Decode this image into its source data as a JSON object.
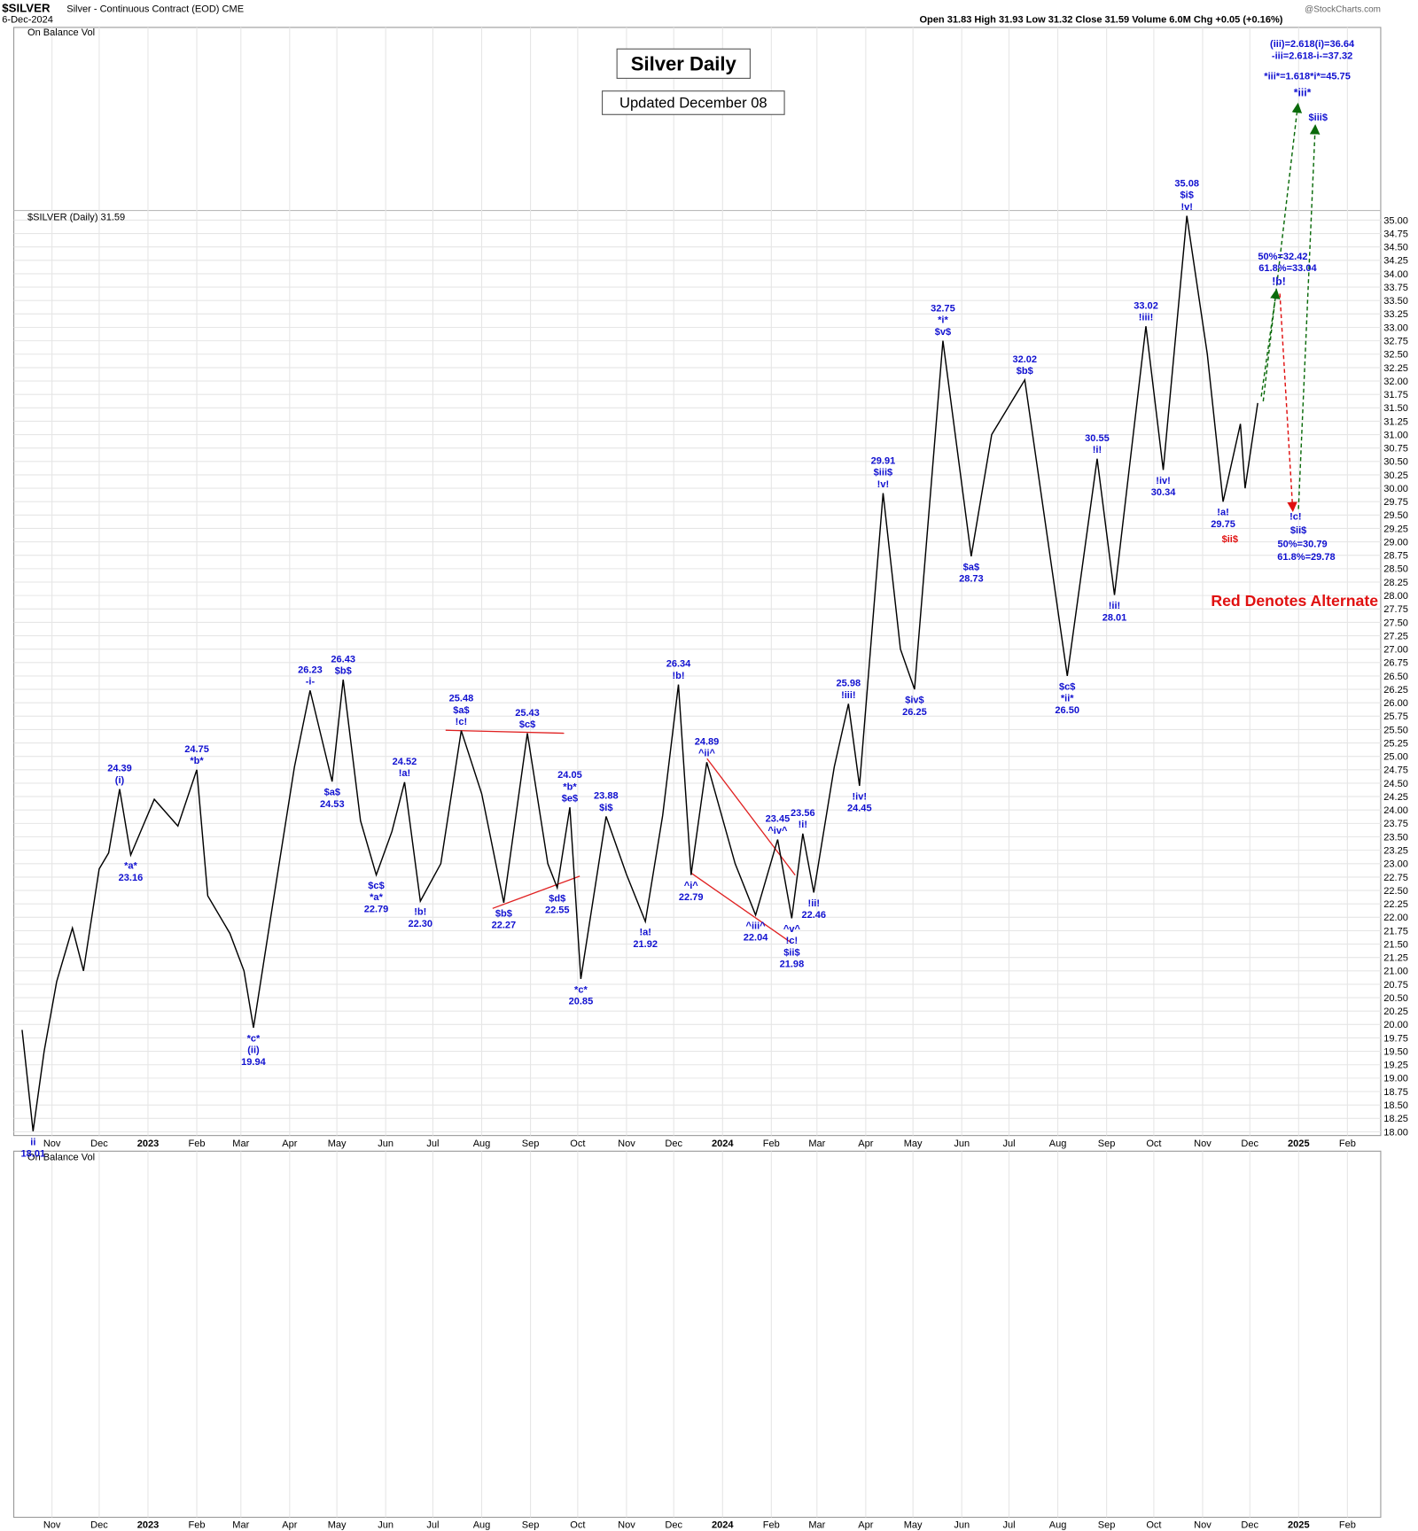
{
  "header": {
    "symbol": "$SILVER",
    "description": "Silver - Continuous Contract (EOD) CME",
    "date": "6-Dec-2024",
    "quote": "Open 31.83  High 31.93  Low 31.32  Close 31.59  Volume 6.0M  Chg +0.05 (+0.16%)",
    "brand": "@StockCharts.com",
    "upper_panel": "On Balance Vol",
    "price_panel": "$SILVER (Daily) 31.59",
    "lower_panel": "On Balance Vol"
  },
  "chart_data": {
    "type": "line",
    "title": "Silver Daily",
    "subtitle": "Updated December 08",
    "color": "#000000",
    "grid": true,
    "ylim": [
      17.93,
      35.18
    ],
    "yticks": [
      {
        "value": 18,
        "label": "18.00"
      },
      {
        "value": 18.25,
        "label": "18.25"
      },
      {
        "value": 18.5,
        "label": "18.50"
      },
      {
        "value": 18.75,
        "label": "18.75"
      },
      {
        "value": 19,
        "label": "19.00"
      },
      {
        "value": 19.25,
        "label": "19.25"
      },
      {
        "value": 19.5,
        "label": "19.50"
      },
      {
        "value": 19.75,
        "label": "19.75"
      },
      {
        "value": 20,
        "label": "20.00"
      },
      {
        "value": 20.25,
        "label": "20.25"
      },
      {
        "value": 20.5,
        "label": "20.50"
      },
      {
        "value": 20.75,
        "label": "20.75"
      },
      {
        "value": 21,
        "label": "21.00"
      },
      {
        "value": 21.25,
        "label": "21.25"
      },
      {
        "value": 21.5,
        "label": "21.50"
      },
      {
        "value": 21.75,
        "label": "21.75"
      },
      {
        "value": 22,
        "label": "22.00"
      },
      {
        "value": 22.25,
        "label": "22.25"
      },
      {
        "value": 22.5,
        "label": "22.50"
      },
      {
        "value": 22.75,
        "label": "22.75"
      },
      {
        "value": 23,
        "label": "23.00"
      },
      {
        "value": 23.25,
        "label": "23.25"
      },
      {
        "value": 23.5,
        "label": "23.50"
      },
      {
        "value": 23.75,
        "label": "23.75"
      },
      {
        "value": 24,
        "label": "24.00"
      },
      {
        "value": 24.25,
        "label": "24.25"
      },
      {
        "value": 24.5,
        "label": "24.50"
      },
      {
        "value": 24.75,
        "label": "24.75"
      },
      {
        "value": 25,
        "label": "25.00"
      },
      {
        "value": 25.25,
        "label": "25.25"
      },
      {
        "value": 25.5,
        "label": "25.50"
      },
      {
        "value": 25.75,
        "label": "25.75"
      },
      {
        "value": 26,
        "label": "26.00"
      },
      {
        "value": 26.25,
        "label": "26.25"
      },
      {
        "value": 26.5,
        "label": "26.50"
      },
      {
        "value": 26.75,
        "label": "26.75"
      },
      {
        "value": 27,
        "label": "27.00"
      },
      {
        "value": 27.25,
        "label": "27.25"
      },
      {
        "value": 27.5,
        "label": "27.50"
      },
      {
        "value": 27.75,
        "label": "27.75"
      },
      {
        "value": 28,
        "label": "28.00"
      },
      {
        "value": 28.25,
        "label": "28.25"
      },
      {
        "value": 28.5,
        "label": "28.50"
      },
      {
        "value": 28.75,
        "label": "28.75"
      },
      {
        "value": 29,
        "label": "29.00"
      },
      {
        "value": 29.25,
        "label": "29.25"
      },
      {
        "value": 29.5,
        "label": "29.50"
      },
      {
        "value": 29.75,
        "label": "29.75"
      },
      {
        "value": 30,
        "label": "30.00"
      },
      {
        "value": 30.25,
        "label": "30.25"
      },
      {
        "value": 30.5,
        "label": "30.50"
      },
      {
        "value": 30.75,
        "label": "30.75"
      },
      {
        "value": 31,
        "label": "31.00"
      },
      {
        "value": 31.25,
        "label": "31.25"
      },
      {
        "value": 31.5,
        "label": "31.50"
      },
      {
        "value": 31.75,
        "label": "31.75"
      },
      {
        "value": 32,
        "label": "32.00"
      },
      {
        "value": 32.25,
        "label": "32.25"
      },
      {
        "value": 32.5,
        "label": "32.50"
      },
      {
        "value": 32.75,
        "label": "32.75"
      },
      {
        "value": 33,
        "label": "33.00"
      },
      {
        "value": 33.25,
        "label": "33.25"
      },
      {
        "value": 33.5,
        "label": "33.50"
      },
      {
        "value": 33.75,
        "label": "33.75"
      },
      {
        "value": 34,
        "label": "34.00"
      },
      {
        "value": 34.25,
        "label": "34.25"
      },
      {
        "value": 34.5,
        "label": "34.50"
      },
      {
        "value": 34.75,
        "label": "34.75"
      },
      {
        "value": 35,
        "label": "35.00"
      }
    ],
    "xlim": [
      "2022-10-12",
      "2025-02-28"
    ],
    "xticks": [
      {
        "value": "2022-11-01",
        "label": "Nov"
      },
      {
        "value": "2022-12-01",
        "label": "Dec"
      },
      {
        "value": "2023-01-01",
        "label": "2023"
      },
      {
        "value": "2023-02-01",
        "label": "Feb"
      },
      {
        "value": "2023-03-01",
        "label": "Mar"
      },
      {
        "value": "2023-04-01",
        "label": "Apr"
      },
      {
        "value": "2023-05-01",
        "label": "May"
      },
      {
        "value": "2023-06-01",
        "label": "Jun"
      },
      {
        "value": "2023-07-01",
        "label": "Jul"
      },
      {
        "value": "2023-08-01",
        "label": "Aug"
      },
      {
        "value": "2023-09-01",
        "label": "Sep"
      },
      {
        "value": "2023-10-01",
        "label": "Oct"
      },
      {
        "value": "2023-11-01",
        "label": "Nov"
      },
      {
        "value": "2023-12-01",
        "label": "Dec"
      },
      {
        "value": "2024-01-01",
        "label": "2024"
      },
      {
        "value": "2024-02-01",
        "label": "Feb"
      },
      {
        "value": "2024-03-01",
        "label": "Mar"
      },
      {
        "value": "2024-04-01",
        "label": "Apr"
      },
      {
        "value": "2024-05-01",
        "label": "May"
      },
      {
        "value": "2024-06-01",
        "label": "Jun"
      },
      {
        "value": "2024-07-01",
        "label": "Jul"
      },
      {
        "value": "2024-08-01",
        "label": "Aug"
      },
      {
        "value": "2024-09-01",
        "label": "Sep"
      },
      {
        "value": "2024-10-01",
        "label": "Oct"
      },
      {
        "value": "2024-11-01",
        "label": "Nov"
      },
      {
        "value": "2024-12-01",
        "label": "Dec"
      },
      {
        "value": "2025-01-01",
        "label": "2025"
      },
      {
        "value": "2025-02-01",
        "label": "Feb"
      }
    ],
    "x": [
      "2022-10-13",
      "2022-10-20",
      "2022-10-27",
      "2022-11-04",
      "2022-11-14",
      "2022-11-21",
      "2022-12-01",
      "2022-12-07",
      "2022-12-14",
      "2022-12-21",
      "2023-01-05",
      "2023-01-20",
      "2023-02-01",
      "2023-02-08",
      "2023-02-22",
      "2023-03-03",
      "2023-03-09",
      "2023-03-20",
      "2023-04-04",
      "2023-04-14",
      "2023-04-28",
      "2023-05-05",
      "2023-05-16",
      "2023-05-26",
      "2023-06-05",
      "2023-06-13",
      "2023-06-23",
      "2023-07-06",
      "2023-07-19",
      "2023-08-01",
      "2023-08-15",
      "2023-08-30",
      "2023-09-12",
      "2023-09-18",
      "2023-09-26",
      "2023-10-03",
      "2023-10-19",
      "2023-11-01",
      "2023-11-13",
      "2023-11-24",
      "2023-12-04",
      "2023-12-12",
      "2023-12-22",
      "2024-01-09",
      "2024-01-22",
      "2024-02-05",
      "2024-02-14",
      "2024-02-21",
      "2024-02-28",
      "2024-03-12",
      "2024-03-21",
      "2024-03-28",
      "2024-04-12",
      "2024-04-23",
      "2024-05-02",
      "2024-05-20",
      "2024-06-07",
      "2024-06-20",
      "2024-07-11",
      "2024-08-07",
      "2024-08-26",
      "2024-09-06",
      "2024-09-26",
      "2024-10-07",
      "2024-10-22",
      "2024-11-04",
      "2024-11-14",
      "2024-11-25",
      "2024-11-28",
      "2024-12-06"
    ],
    "values": [
      19.9,
      18.01,
      19.5,
      20.8,
      21.8,
      21.0,
      22.9,
      23.2,
      24.39,
      23.16,
      24.2,
      23.7,
      24.75,
      22.4,
      21.7,
      21.0,
      19.94,
      22.0,
      24.8,
      26.23,
      24.53,
      26.43,
      23.8,
      22.79,
      23.6,
      24.52,
      22.3,
      23.0,
      25.48,
      24.3,
      22.27,
      25.43,
      23.0,
      22.55,
      24.05,
      20.85,
      23.88,
      22.8,
      21.92,
      23.9,
      26.34,
      22.79,
      24.89,
      23.0,
      22.04,
      23.45,
      21.98,
      23.56,
      22.46,
      24.8,
      25.98,
      24.45,
      29.91,
      27.0,
      26.25,
      32.75,
      28.73,
      31.0,
      32.02,
      26.5,
      30.55,
      28.01,
      33.02,
      30.34,
      35.08,
      32.5,
      29.75,
      31.2,
      30.0,
      31.59
    ],
    "annotations": [
      {
        "x": "2022-10-20",
        "value": 18.01,
        "value_label": "18.01",
        "labels": [
          "ii"
        ],
        "side": "below"
      },
      {
        "x": "2022-12-14",
        "value": 24.39,
        "value_label": "24.39",
        "labels": [
          "(i)"
        ],
        "side": "above"
      },
      {
        "x": "2022-12-21",
        "value": 23.16,
        "value_label": "23.16",
        "labels": [
          "*a*"
        ],
        "side": "below"
      },
      {
        "x": "2023-02-01",
        "value": 24.75,
        "value_label": "24.75",
        "labels": [
          "*b*"
        ],
        "side": "above"
      },
      {
        "x": "2023-03-09",
        "value": 19.94,
        "value_label": "19.94",
        "labels": [
          "*c*",
          "(ii)"
        ],
        "side": "below"
      },
      {
        "x": "2023-04-14",
        "value": 26.23,
        "value_label": "26.23",
        "labels": [
          "-i-"
        ],
        "side": "above"
      },
      {
        "x": "2023-04-28",
        "value": 24.53,
        "value_label": "24.53",
        "labels": [
          "$a$"
        ],
        "side": "below"
      },
      {
        "x": "2023-05-05",
        "value": 26.43,
        "value_label": "26.43",
        "labels": [
          "$b$"
        ],
        "side": "above"
      },
      {
        "x": "2023-05-26",
        "value": 22.79,
        "value_label": "22.79",
        "labels": [
          "$c$",
          "*a*"
        ],
        "side": "below"
      },
      {
        "x": "2023-06-13",
        "value": 24.52,
        "value_label": "24.52",
        "labels": [
          "!a!"
        ],
        "side": "above"
      },
      {
        "x": "2023-06-23",
        "value": 22.3,
        "value_label": "22.30",
        "labels": [
          "!b!"
        ],
        "side": "below"
      },
      {
        "x": "2023-07-19",
        "value": 25.48,
        "value_label": "25.48",
        "labels": [
          "$a$",
          "!c!"
        ],
        "side": "above"
      },
      {
        "x": "2023-08-15",
        "value": 22.27,
        "value_label": "22.27",
        "labels": [
          "$b$"
        ],
        "side": "below"
      },
      {
        "x": "2023-08-30",
        "value": 25.43,
        "value_label": "25.43",
        "labels": [
          "$c$"
        ],
        "side": "above"
      },
      {
        "x": "2023-09-18",
        "value": 22.55,
        "value_label": "22.55",
        "labels": [
          "$d$"
        ],
        "side": "below"
      },
      {
        "x": "2023-09-26",
        "value": 24.05,
        "value_label": "24.05",
        "labels": [
          "*b*",
          "$e$"
        ],
        "side": "above"
      },
      {
        "x": "2023-10-03",
        "value": 20.85,
        "value_label": "20.85",
        "labels": [
          "*c*"
        ],
        "side": "below"
      },
      {
        "x": "2023-10-19",
        "value": 23.88,
        "value_label": "23.88",
        "labels": [
          "$i$"
        ],
        "side": "above"
      },
      {
        "x": "2023-11-13",
        "value": 21.92,
        "value_label": "21.92",
        "labels": [
          "!a!"
        ],
        "side": "below"
      },
      {
        "x": "2023-12-04",
        "value": 26.34,
        "value_label": "26.34",
        "labels": [
          "!b!"
        ],
        "side": "above"
      },
      {
        "x": "2023-12-12",
        "value": 22.79,
        "value_label": "22.79",
        "labels": [
          "^i^"
        ],
        "side": "below"
      },
      {
        "x": "2023-12-22",
        "value": 24.89,
        "value_label": "24.89",
        "labels": [
          "^ii^"
        ],
        "side": "above"
      },
      {
        "x": "2024-01-22",
        "value": 22.04,
        "value_label": "22.04",
        "labels": [
          "^iii^"
        ],
        "side": "below"
      },
      {
        "x": "2024-02-05",
        "value": 23.45,
        "value_label": "23.45",
        "labels": [
          "^iv^"
        ],
        "side": "above"
      },
      {
        "x": "2024-02-14",
        "value": 21.98,
        "value_label": "21.98",
        "labels": [
          "^v^",
          "!c!",
          "$ii$"
        ],
        "side": "below"
      },
      {
        "x": "2024-02-21",
        "value": 23.56,
        "value_label": "23.56",
        "labels": [
          "!i!"
        ],
        "side": "above"
      },
      {
        "x": "2024-02-28",
        "value": 22.46,
        "value_label": "22.46",
        "labels": [
          "!ii!"
        ],
        "side": "below"
      },
      {
        "x": "2024-03-21",
        "value": 25.98,
        "value_label": "25.98",
        "labels": [
          "!iii!"
        ],
        "side": "above"
      },
      {
        "x": "2024-03-28",
        "value": 24.45,
        "value_label": "24.45",
        "labels": [
          "!iv!"
        ],
        "side": "below"
      },
      {
        "x": "2024-04-12",
        "value": 29.91,
        "value_label": "29.91",
        "labels": [
          "$iii$",
          "!v!"
        ],
        "side": "above"
      },
      {
        "x": "2024-05-02",
        "value": 26.25,
        "value_label": "26.25",
        "labels": [
          "$iv$"
        ],
        "side": "below"
      },
      {
        "x": "2024-05-20",
        "value": 32.75,
        "value_label": "32.75",
        "labels": [
          "*i*",
          "$v$"
        ],
        "side": "above"
      },
      {
        "x": "2024-06-07",
        "value": 28.73,
        "value_label": "28.73",
        "labels": [
          "$a$"
        ],
        "side": "below"
      },
      {
        "x": "2024-07-11",
        "value": 32.02,
        "value_label": "32.02",
        "labels": [
          "$b$"
        ],
        "side": "above"
      },
      {
        "x": "2024-08-07",
        "value": 26.5,
        "value_label": "26.50",
        "labels": [
          "$c$",
          "*ii*"
        ],
        "side": "below"
      },
      {
        "x": "2024-08-26",
        "value": 30.55,
        "value_label": "30.55",
        "labels": [
          "!i!"
        ],
        "side": "above"
      },
      {
        "x": "2024-09-06",
        "value": 28.01,
        "value_label": "28.01",
        "labels": [
          "!ii!"
        ],
        "side": "below"
      },
      {
        "x": "2024-09-26",
        "value": 33.02,
        "value_label": "33.02",
        "labels": [
          "!iii!"
        ],
        "side": "above"
      },
      {
        "x": "2024-10-07",
        "value": 30.34,
        "value_label": "30.34",
        "labels": [
          "!iv!"
        ],
        "side": "below"
      },
      {
        "x": "2024-10-22",
        "value": 35.08,
        "value_label": "35.08",
        "labels": [
          "$i$",
          "!v!"
        ],
        "side": "above"
      },
      {
        "x": "2024-11-14",
        "value": 29.75,
        "value_label": "29.75",
        "labels": [
          "!a!"
        ],
        "side": "below"
      }
    ],
    "notes": [
      "(iii)=2.618(i)=36.64",
      "-iii=2.618-i-=37.32",
      "*iii*=1.618*i*=45.75",
      "*iii*",
      "$iii$",
      "50%=32.42",
      "61.8%=33.04",
      "!b!",
      "!c!",
      "$ii$",
      "50%=30.79",
      "61.8%=29.78",
      "$ii$",
      "Red Denotes Alternate"
    ]
  }
}
